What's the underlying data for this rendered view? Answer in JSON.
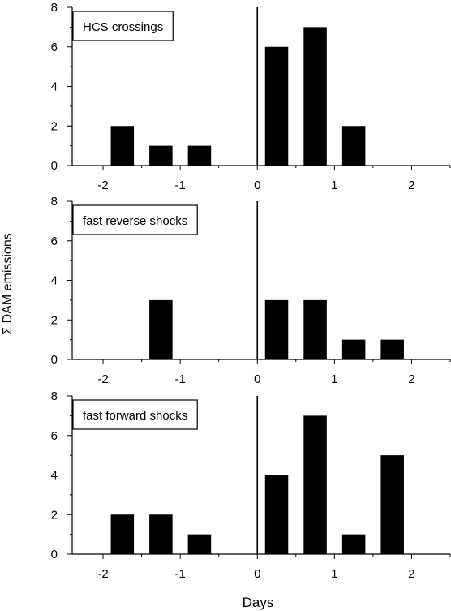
{
  "figure": {
    "ylabel": "Σ DAM emissions",
    "xlabel": "Days"
  },
  "chart_data": [
    {
      "type": "bar",
      "legend_label": "HCS crossings",
      "legend_position": "top-left",
      "x": [
        -1.75,
        -1.25,
        -0.75,
        0.25,
        0.75,
        1.25
      ],
      "values": [
        2,
        1,
        1,
        6,
        7,
        2
      ],
      "bar_width_days": 0.3,
      "xlim": [
        -2.4,
        2.5
      ],
      "ylim": [
        0,
        8
      ],
      "xticks": [
        -2,
        -1,
        0,
        1,
        2
      ],
      "yticks": [
        0,
        2,
        4,
        6,
        8
      ],
      "vertical_line_at": 0
    },
    {
      "type": "bar",
      "legend_label": "fast reverse shocks",
      "legend_position": "top-left",
      "x": [
        -1.25,
        0.25,
        0.75,
        1.25,
        1.75
      ],
      "values": [
        3,
        3,
        3,
        1,
        1
      ],
      "bar_width_days": 0.3,
      "xlim": [
        -2.4,
        2.5
      ],
      "ylim": [
        0,
        8
      ],
      "xticks": [
        -2,
        -1,
        0,
        1,
        2
      ],
      "yticks": [
        0,
        2,
        4,
        6,
        8
      ],
      "vertical_line_at": 0
    },
    {
      "type": "bar",
      "legend_label": "fast forward shocks",
      "legend_position": "top-left",
      "x": [
        -1.75,
        -1.25,
        -0.75,
        0.25,
        0.75,
        1.25,
        1.75
      ],
      "values": [
        2,
        2,
        1,
        4,
        7,
        1,
        5
      ],
      "bar_width_days": 0.3,
      "xlim": [
        -2.4,
        2.5
      ],
      "ylim": [
        0,
        8
      ],
      "xticks": [
        -2,
        -1,
        0,
        1,
        2
      ],
      "yticks": [
        0,
        2,
        4,
        6,
        8
      ],
      "vertical_line_at": 0
    }
  ]
}
